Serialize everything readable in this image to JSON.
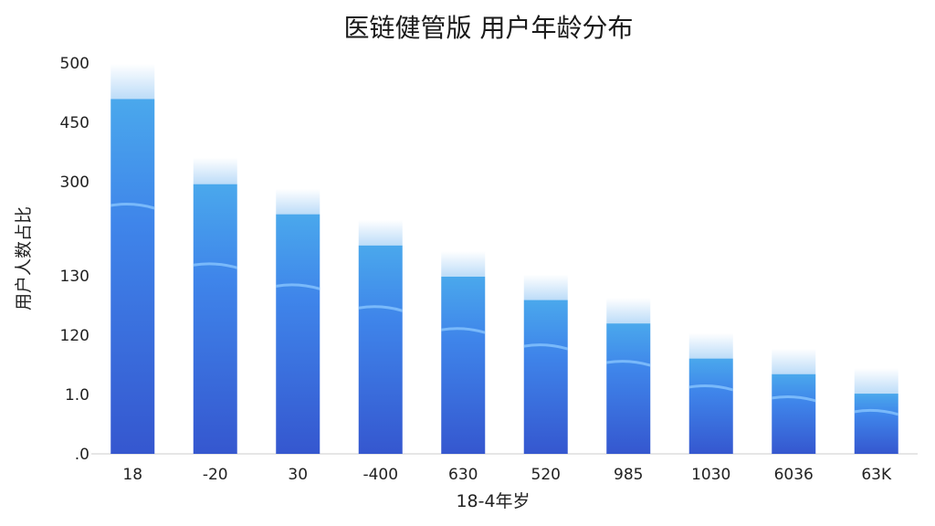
{
  "chart_data": {
    "type": "bar",
    "title": "医链健管版 用户年龄分布",
    "xlabel": "18-4年岁",
    "ylabel": "用户人数占比",
    "categories": [
      "18",
      "-20",
      "30",
      "-400",
      "630",
      "520",
      "985",
      "1030",
      "6036",
      "63K"
    ],
    "values": [
      500,
      380,
      340,
      300,
      260,
      230,
      200,
      155,
      135,
      110
    ],
    "y_tick_labels": [
      "500",
      "450",
      "300",
      "130",
      "120",
      "1.0",
      ".0"
    ],
    "ylim": [
      0,
      500
    ],
    "grid": false,
    "colors": {
      "bar_top": "#4aa8ec",
      "bar_bottom": "#3557cf",
      "bar_mid": "#3f85ea",
      "cap": "#cfe6fb",
      "axis": "#cccccc"
    }
  }
}
